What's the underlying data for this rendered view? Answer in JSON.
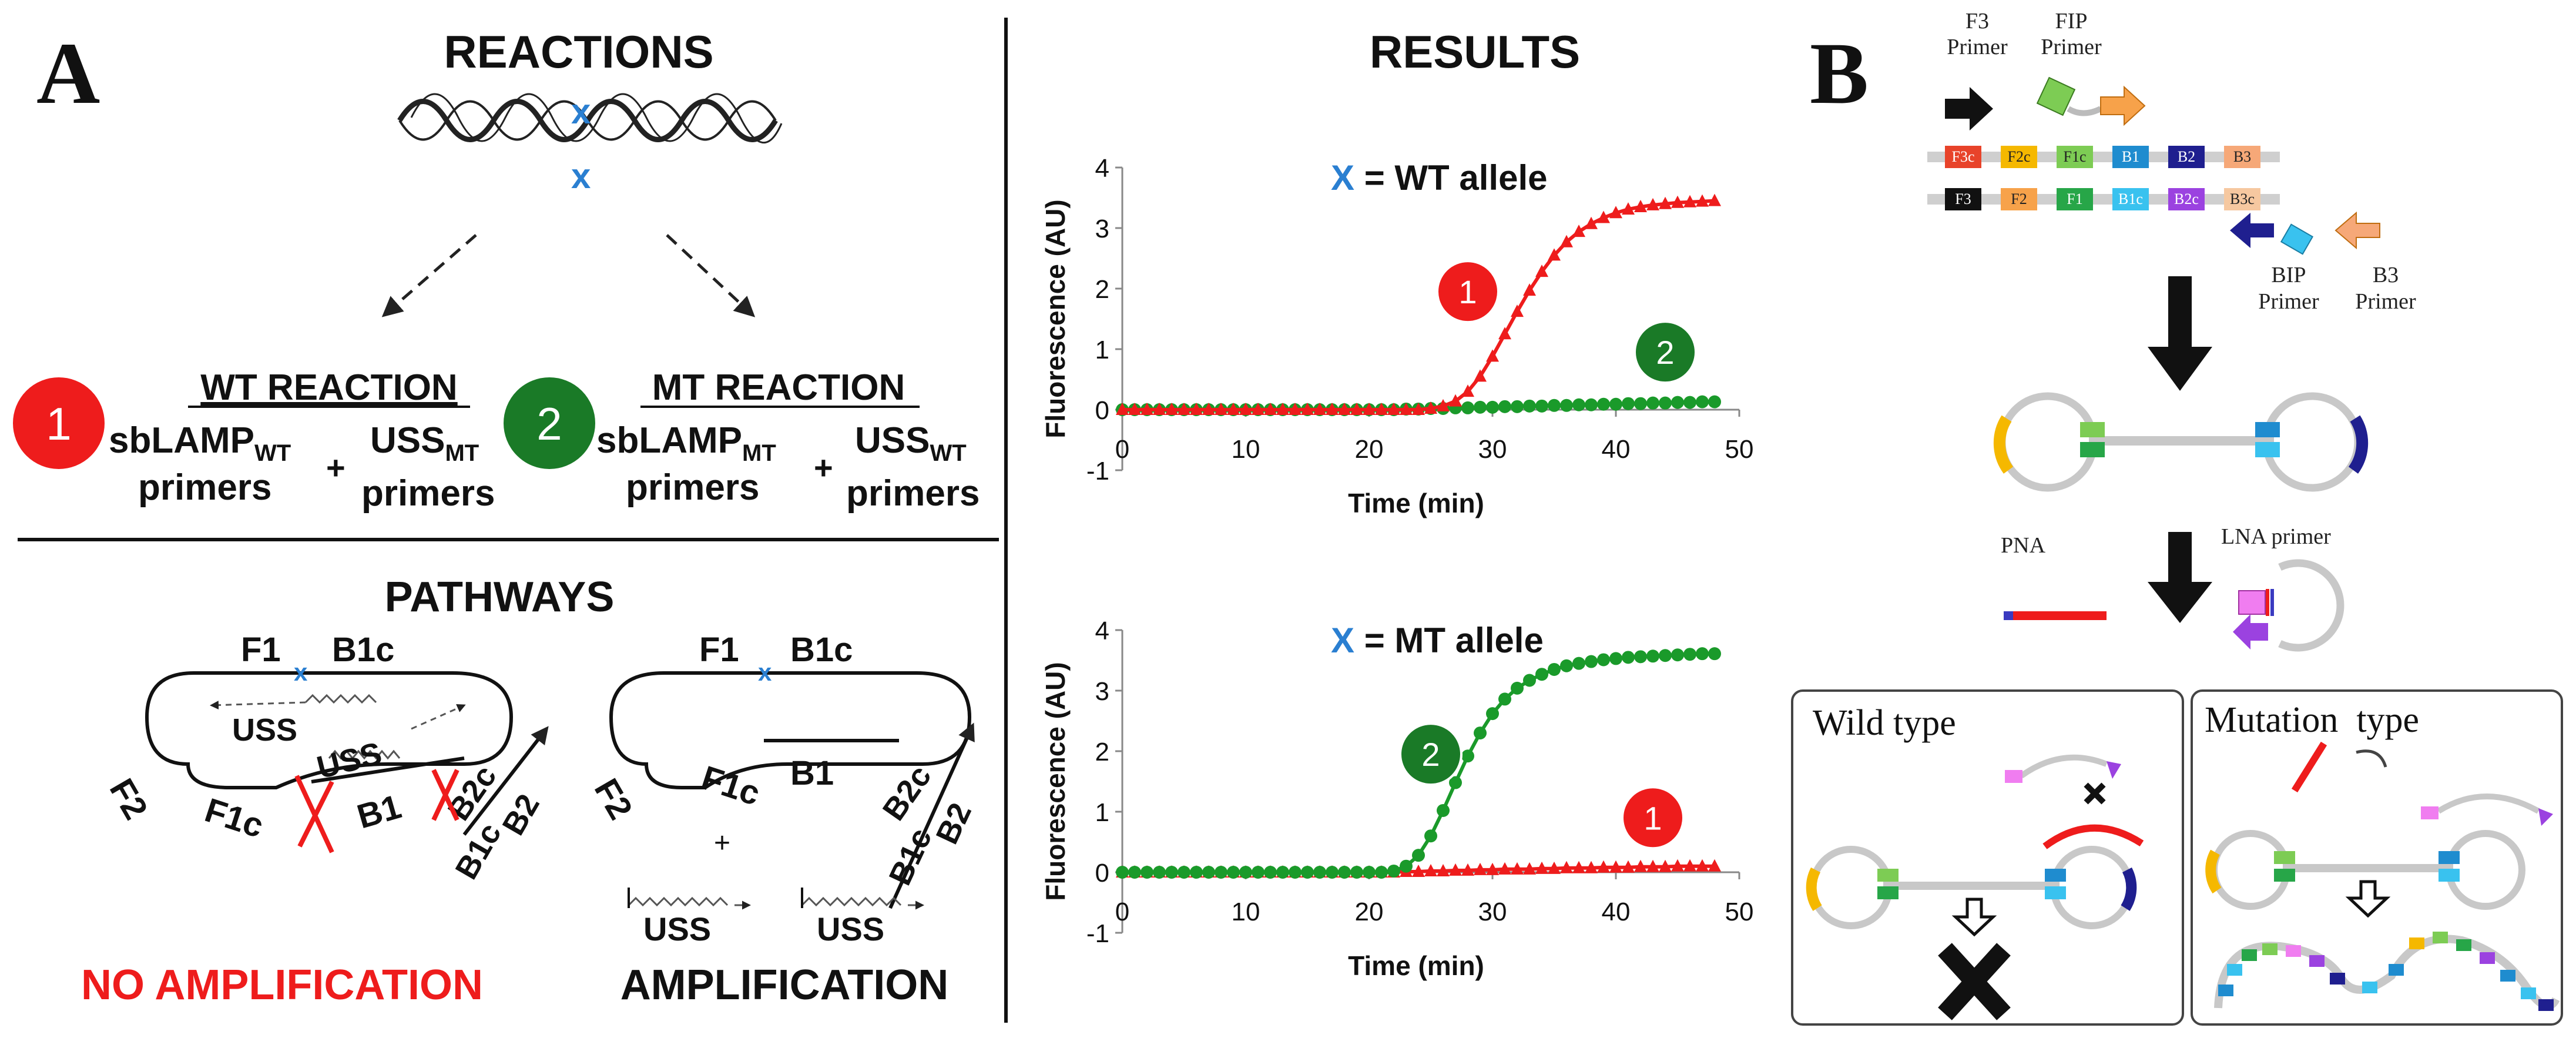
{
  "panel_a": {
    "label": "A",
    "reactions": {
      "title": "REACTIONS",
      "mutation_marker": "x",
      "wt": {
        "badge": "1",
        "title": "WT REACTION",
        "primer_main": "sbLAMP",
        "primer_main_sub": "WT",
        "primer_suffix": "primers",
        "plus": "+",
        "uss": "USS",
        "uss_sub": "MT",
        "uss_suffix": "primers"
      },
      "mt": {
        "badge": "2",
        "title": "MT REACTION",
        "primer_main": "sbLAMP",
        "primer_main_sub": "MT",
        "primer_suffix": "primers",
        "plus": "+",
        "uss": "USS",
        "uss_sub": "WT",
        "uss_suffix": "primers"
      }
    },
    "pathways": {
      "title": "PATHWAYS",
      "left": {
        "labels": {
          "f1": "F1",
          "b1c": "B1c",
          "f2": "F2",
          "f1c": "F1c",
          "b1": "B1",
          "b2c": "B2c",
          "b1c_low": "B1c",
          "b2": "B2",
          "uss_top": "USS",
          "uss_mid": "USS"
        },
        "outcome": "NO AMPLIFICATION"
      },
      "right": {
        "labels": {
          "f1": "F1",
          "b1c": "B1c",
          "f2": "F2",
          "f1c": "F1c",
          "b1": "B1",
          "b2c": "B2c",
          "b1c_low": "B1c",
          "b2": "B2",
          "uss_a": "USS",
          "uss_b": "USS",
          "plus": "+"
        },
        "outcome": "AMPLIFICATION"
      }
    },
    "results": {
      "title": "RESULTS"
    }
  },
  "chart_data": [
    {
      "type": "line",
      "title": "X = WT allele",
      "title_marker": "X",
      "title_text": "= WT allele",
      "xlabel": "Time (min)",
      "ylabel": "Fluorescence (AU)",
      "xlim": [
        0,
        50
      ],
      "ylim": [
        -1,
        4
      ],
      "xticks": [
        0,
        10,
        20,
        30,
        40,
        50
      ],
      "yticks": [
        -1,
        0,
        1,
        2,
        3,
        4
      ],
      "x": [
        0,
        1,
        2,
        3,
        4,
        5,
        6,
        7,
        8,
        9,
        10,
        11,
        12,
        13,
        14,
        15,
        16,
        17,
        18,
        19,
        20,
        21,
        22,
        23,
        24,
        25,
        26,
        27,
        28,
        29,
        30,
        31,
        32,
        33,
        34,
        35,
        36,
        37,
        38,
        39,
        40,
        41,
        42,
        43,
        44,
        45,
        46,
        47,
        48
      ],
      "series": [
        {
          "name": "1",
          "color": "#ee1c1c",
          "marker": "triangle",
          "values": [
            0.0,
            0.0,
            0.0,
            0.0,
            0.0,
            0.0,
            0.0,
            0.0,
            0.0,
            0.0,
            0.0,
            0.0,
            0.0,
            0.0,
            0.0,
            0.0,
            0.0,
            0.0,
            0.0,
            0.0,
            0.0,
            0.0,
            0.0,
            0.0,
            0.0,
            0.02,
            0.06,
            0.14,
            0.3,
            0.55,
            0.88,
            1.25,
            1.62,
            1.97,
            2.28,
            2.55,
            2.77,
            2.94,
            3.07,
            3.17,
            3.25,
            3.31,
            3.35,
            3.38,
            3.4,
            3.42,
            3.43,
            3.44,
            3.45
          ]
        },
        {
          "name": "2",
          "color": "#1a9a2a",
          "marker": "circle",
          "values": [
            0.0,
            0.0,
            0.0,
            0.0,
            0.0,
            0.0,
            0.0,
            0.0,
            0.0,
            0.0,
            0.0,
            0.0,
            0.0,
            0.0,
            0.0,
            0.0,
            0.0,
            0.0,
            0.0,
            0.0,
            0.0,
            0.0,
            0.0,
            0.01,
            0.01,
            0.02,
            0.02,
            0.03,
            0.03,
            0.04,
            0.04,
            0.05,
            0.05,
            0.06,
            0.06,
            0.07,
            0.07,
            0.08,
            0.08,
            0.09,
            0.09,
            0.1,
            0.1,
            0.11,
            0.11,
            0.12,
            0.12,
            0.13,
            0.13
          ]
        }
      ],
      "badges": [
        {
          "series": "1",
          "label": "1",
          "x": 28,
          "y": 1.95
        },
        {
          "series": "2",
          "label": "2",
          "x": 44,
          "y": 0.95
        }
      ]
    },
    {
      "type": "line",
      "title": "X = MT allele",
      "title_marker": "X",
      "title_text": "= MT allele",
      "xlabel": "Time (min)",
      "ylabel": "Fluorescence (AU)",
      "xlim": [
        0,
        50
      ],
      "ylim": [
        -1,
        4
      ],
      "xticks": [
        0,
        10,
        20,
        30,
        40,
        50
      ],
      "yticks": [
        -1,
        0,
        1,
        2,
        3,
        4
      ],
      "x": [
        0,
        1,
        2,
        3,
        4,
        5,
        6,
        7,
        8,
        9,
        10,
        11,
        12,
        13,
        14,
        15,
        16,
        17,
        18,
        19,
        20,
        21,
        22,
        23,
        24,
        25,
        26,
        27,
        28,
        29,
        30,
        31,
        32,
        33,
        34,
        35,
        36,
        37,
        38,
        39,
        40,
        41,
        42,
        43,
        44,
        45,
        46,
        47,
        48
      ],
      "series": [
        {
          "name": "1",
          "color": "#ee1c1c",
          "marker": "triangle",
          "values": [
            0.0,
            0.0,
            0.0,
            0.0,
            0.0,
            0.0,
            0.0,
            0.0,
            0.0,
            0.0,
            0.0,
            0.0,
            0.0,
            0.0,
            0.0,
            0.0,
            0.0,
            0.0,
            0.0,
            0.0,
            0.0,
            0.0,
            0.0,
            0.01,
            0.01,
            0.02,
            0.02,
            0.03,
            0.03,
            0.04,
            0.04,
            0.05,
            0.05,
            0.05,
            0.06,
            0.06,
            0.07,
            0.07,
            0.07,
            0.08,
            0.08,
            0.08,
            0.09,
            0.09,
            0.09,
            0.1,
            0.1,
            0.1,
            0.1
          ]
        },
        {
          "name": "2",
          "color": "#1a9a2a",
          "marker": "circle",
          "values": [
            0.0,
            0.0,
            0.0,
            0.0,
            0.0,
            0.0,
            0.0,
            0.0,
            0.0,
            0.0,
            0.0,
            0.0,
            0.0,
            0.0,
            0.0,
            0.0,
            0.0,
            0.0,
            0.0,
            0.0,
            0.0,
            0.0,
            0.02,
            0.1,
            0.28,
            0.6,
            1.02,
            1.48,
            1.92,
            2.3,
            2.62,
            2.86,
            3.04,
            3.17,
            3.27,
            3.35,
            3.41,
            3.45,
            3.48,
            3.51,
            3.53,
            3.55,
            3.56,
            3.57,
            3.58,
            3.59,
            3.6,
            3.61,
            3.61
          ]
        }
      ],
      "badges": [
        {
          "series": "2",
          "label": "2",
          "x": 25,
          "y": 1.95
        },
        {
          "series": "1",
          "label": "1",
          "x": 43,
          "y": 0.9
        }
      ]
    }
  ],
  "panel_b": {
    "label": "B",
    "primers": {
      "f3_line1": "F3",
      "f3_line2": "Primer",
      "fip_line1": "FIP",
      "fip_line2": "Primer",
      "bip_line1": "BIP",
      "bip_line2": "Primer",
      "b3_line1": "B3",
      "b3_line2": "Primer"
    },
    "top_strand": [
      {
        "label": "F3c",
        "color": "#e8432a",
        "text_color": "#ffffff"
      },
      {
        "label": "F2c",
        "color": "#f5b800",
        "text_color": "#222222"
      },
      {
        "label": "F1c",
        "color": "#7dcc54",
        "text_color": "#222222"
      },
      {
        "label": "B1",
        "color": "#1f8ccf",
        "text_color": "#ffffff"
      },
      {
        "label": "B2",
        "color": "#1f1f8f",
        "text_color": "#ffffff"
      },
      {
        "label": "B3",
        "color": "#f6a878",
        "text_color": "#222222"
      }
    ],
    "bottom_strand": [
      {
        "label": "F3",
        "color": "#111111",
        "text_color": "#ffffff"
      },
      {
        "label": "F2",
        "color": "#f7a24a",
        "text_color": "#222222"
      },
      {
        "label": "F1",
        "color": "#27a648",
        "text_color": "#ffffff"
      },
      {
        "label": "B1c",
        "color": "#39c2ef",
        "text_color": "#ffffff"
      },
      {
        "label": "B2c",
        "color": "#9b42e0",
        "text_color": "#ffffff"
      },
      {
        "label": "B3c",
        "color": "#f6c8a0",
        "text_color": "#222222"
      }
    ],
    "pna_label": "PNA",
    "lna_label": "LNA primer",
    "wild_type_title": "Wild type",
    "mutation_type_title": "Mutation  type"
  }
}
